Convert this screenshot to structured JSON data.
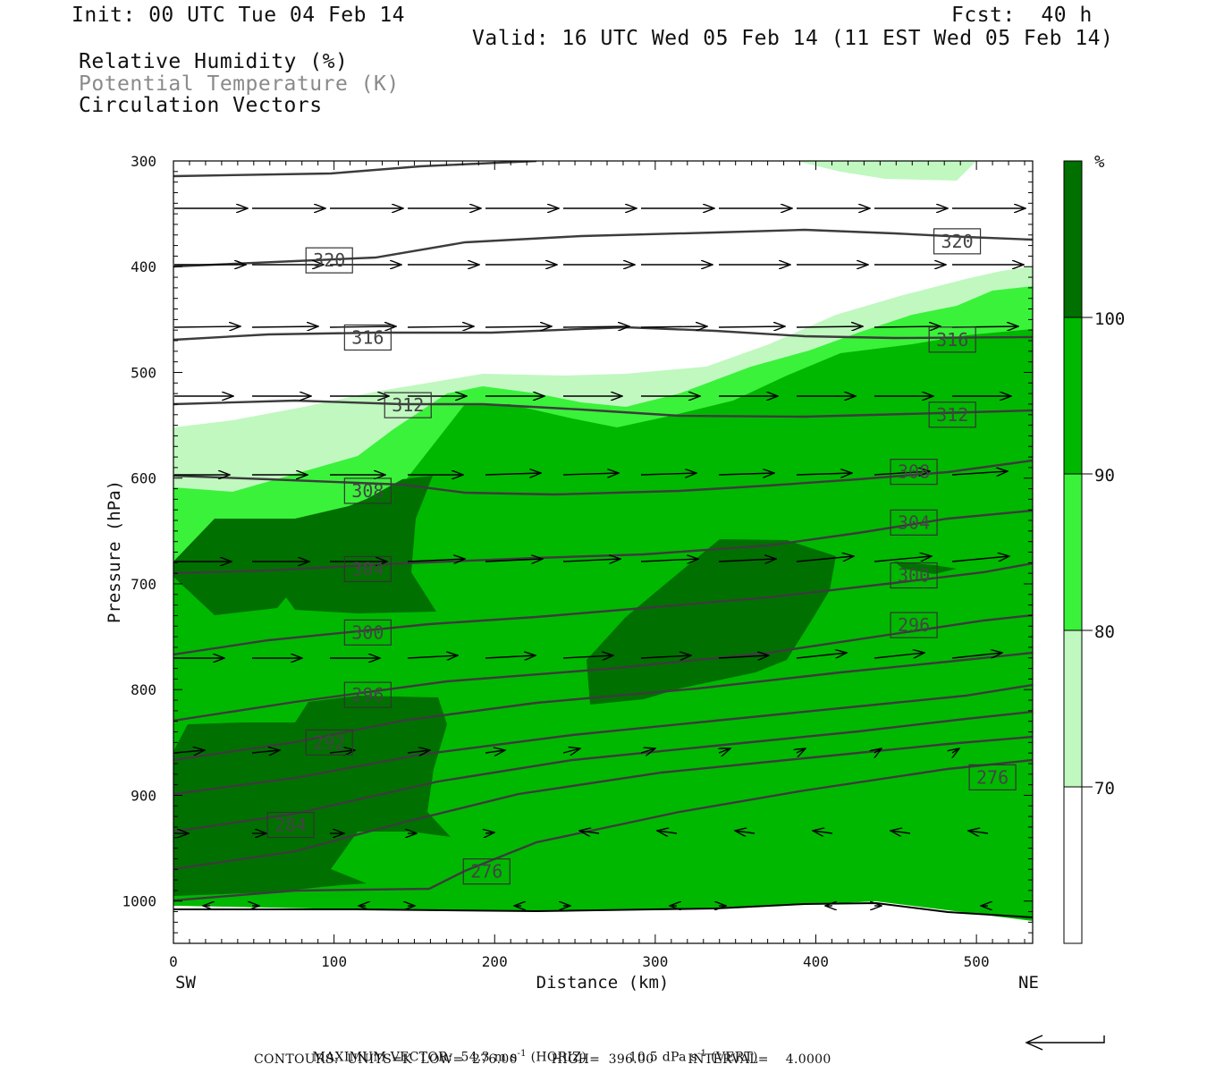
{
  "header": {
    "init": "Init: 00 UTC Tue 04 Feb 14",
    "fcst": "Fcst:  40 h",
    "valid": "Valid: 16 UTC Wed 05 Feb 14 (11 EST Wed 05 Feb 14)",
    "fields": [
      "Relative Humidity (%)",
      "Potential Temperature (K)",
      "Circulation Vectors"
    ]
  },
  "chart_data": {
    "type": "heatmap",
    "xlabel": "Distance (km)",
    "ylabel": "Pressure (hPa)",
    "x_ticks": [
      "0",
      "100",
      "200",
      "300",
      "400",
      "500"
    ],
    "y_ticks": [
      "300",
      "400",
      "500",
      "600",
      "700",
      "800",
      "900",
      "1000"
    ],
    "xlim": [
      0,
      535
    ],
    "ylim": [
      1040,
      300
    ],
    "x_end_labels": {
      "left": "SW",
      "right": "NE"
    },
    "colorbar": {
      "unit": "%",
      "levels": [
        "70",
        "80",
        "90",
        "100"
      ],
      "colors": [
        "#ffffff",
        "#c0f8c0",
        "#3af23a",
        "#00b800",
        "#007000"
      ]
    },
    "theta_contours": {
      "units": "K",
      "labels": [
        {
          "x": 97,
          "p": 394,
          "v": "320"
        },
        {
          "x": 488,
          "p": 376,
          "v": "320"
        },
        {
          "x": 121,
          "p": 467,
          "v": "316"
        },
        {
          "x": 485,
          "p": 469,
          "v": "316"
        },
        {
          "x": 146,
          "p": 531,
          "v": "312"
        },
        {
          "x": 485,
          "p": 540,
          "v": "312"
        },
        {
          "x": 121,
          "p": 612,
          "v": "308"
        },
        {
          "x": 461,
          "p": 594,
          "v": "308"
        },
        {
          "x": 461,
          "p": 642,
          "v": "304"
        },
        {
          "x": 121,
          "p": 686,
          "v": "304"
        },
        {
          "x": 461,
          "p": 692,
          "v": "300"
        },
        {
          "x": 121,
          "p": 746,
          "v": "300"
        },
        {
          "x": 461,
          "p": 739,
          "v": "296"
        },
        {
          "x": 121,
          "p": 805,
          "v": "296"
        },
        {
          "x": 97,
          "p": 850,
          "v": "292"
        },
        {
          "x": 510,
          "p": 883,
          "v": "276"
        },
        {
          "x": 73,
          "p": 928,
          "v": "284"
        },
        {
          "x": 195,
          "p": 972,
          "v": "276"
        }
      ]
    },
    "footer": {
      "max_vector_label": "MAXIMUM VECTOR:",
      "horiz_value": "54.3",
      "horiz_unit": "m s",
      "horiz_exp": "-1",
      "horiz_tag": "(HORIZ)",
      "vert_value": "10.5",
      "vert_unit": "dPa s",
      "vert_exp": "-1",
      "vert_tag": "(VERT)",
      "contours_line": "CONTOURS:  UNITS=K  LOW=  276.00        HIGH=  396.00        INTERVAL=    4.0000"
    }
  }
}
